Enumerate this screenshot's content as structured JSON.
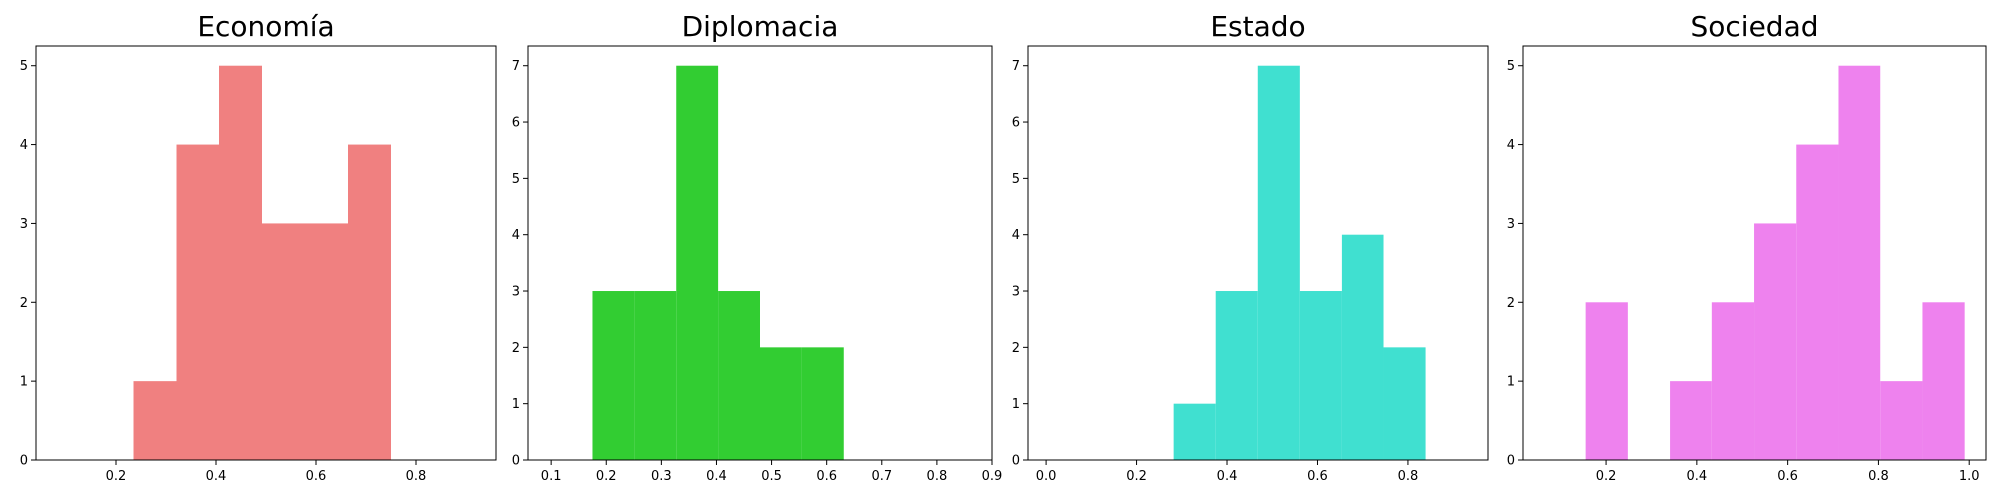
{
  "chart_data": [
    {
      "type": "histogram",
      "title": "Economía",
      "color": "#f08080",
      "bins": [
        0.235,
        0.321,
        0.406,
        0.492,
        0.578,
        0.664,
        0.75
      ],
      "counts": [
        1,
        4,
        5,
        3,
        3,
        4
      ],
      "xlim": [
        0.04,
        0.96
      ],
      "xticks": [
        0.2,
        0.4,
        0.6,
        0.8
      ],
      "ylim": [
        0,
        5.25
      ],
      "yticks": [
        0,
        1,
        2,
        3,
        4,
        5
      ]
    },
    {
      "type": "histogram",
      "title": "Diplomacia",
      "color": "#32cd32",
      "bins": [
        0.175,
        0.251,
        0.327,
        0.403,
        0.479,
        0.555,
        0.631
      ],
      "counts": [
        3,
        3,
        7,
        3,
        2,
        2
      ],
      "xlim": [
        0.058,
        0.9
      ],
      "xticks": [
        0.1,
        0.2,
        0.3,
        0.4,
        0.5,
        0.6,
        0.7,
        0.8,
        0.9
      ],
      "ylim": [
        0,
        7.35
      ],
      "yticks": [
        0,
        1,
        2,
        3,
        4,
        5,
        6,
        7
      ]
    },
    {
      "type": "histogram",
      "title": "Estado",
      "color": "#40e0d0",
      "bins": [
        0.282,
        0.375,
        0.468,
        0.561,
        0.654,
        0.746,
        0.839
      ],
      "counts": [
        1,
        3,
        7,
        3,
        4,
        2
      ],
      "xlim": [
        -0.04,
        0.977
      ],
      "xticks": [
        {
          "value": 0,
          "label": "0.0"
        },
        0.2,
        0.4,
        0.6,
        0.8
      ],
      "ylim": [
        0,
        7.35
      ],
      "yticks": [
        0,
        1,
        2,
        3,
        4,
        5,
        6,
        7
      ]
    },
    {
      "type": "histogram",
      "title": "Sociedad",
      "color": "#ee82ee",
      "bins": [
        0.155,
        0.248,
        0.341,
        0.433,
        0.526,
        0.619,
        0.712,
        0.804,
        0.897,
        0.99
      ],
      "counts": [
        2,
        0,
        1,
        2,
        3,
        4,
        5,
        1,
        2
      ],
      "xlim": [
        0.017,
        1.037
      ],
      "xticks": [
        0.2,
        0.4,
        0.6,
        0.8,
        {
          "value": 1,
          "label": "1.0"
        }
      ],
      "ylim": [
        0,
        5.25
      ],
      "yticks": [
        0,
        1,
        2,
        3,
        4,
        5
      ]
    }
  ]
}
